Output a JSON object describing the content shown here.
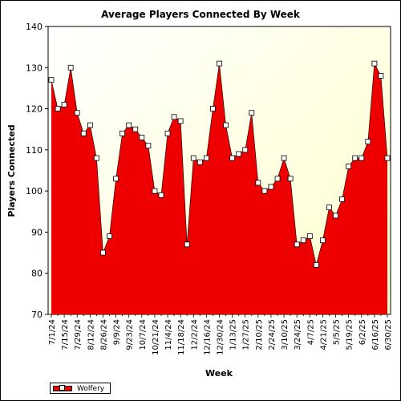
{
  "chart_data": {
    "type": "area",
    "title": "Average Players Connected By Week",
    "xlabel": "Week",
    "ylabel": "Players Connected",
    "ylim": [
      70,
      140
    ],
    "yticks": [
      70,
      80,
      90,
      100,
      110,
      120,
      130,
      140
    ],
    "grid": false,
    "legend": "bottom-left",
    "xtick_labels": [
      "7/1/24",
      "7/15/24",
      "7/29/24",
      "8/12/24",
      "8/26/24",
      "9/9/24",
      "9/23/24",
      "10/7/24",
      "10/21/24",
      "11/4/24",
      "11/18/24",
      "12/2/24",
      "12/16/24",
      "12/30/24",
      "1/13/25",
      "1/27/25",
      "2/10/25",
      "2/24/25",
      "3/10/25",
      "3/24/25",
      "4/7/25",
      "4/21/25",
      "5/5/25",
      "5/19/25",
      "6/2/25",
      "6/16/25",
      "6/30/25"
    ],
    "series": [
      {
        "name": "Wolfery",
        "color": "#ee0000",
        "values": [
          127,
          120,
          121,
          130,
          119,
          114,
          116,
          108,
          85,
          89,
          103,
          114,
          116,
          115,
          113,
          111,
          100,
          99,
          114,
          118,
          117,
          87,
          108,
          107,
          108,
          120,
          131,
          116,
          108,
          109,
          110,
          119,
          102,
          100,
          101,
          103,
          108,
          103,
          87,
          88,
          89,
          82,
          88,
          96,
          94,
          98,
          106,
          108,
          108,
          112,
          131,
          128,
          108
        ]
      }
    ]
  },
  "colors": {
    "plot_background": "#ffffe0",
    "area_fill": "#ee0000",
    "marker_fill": "#ffffff"
  }
}
